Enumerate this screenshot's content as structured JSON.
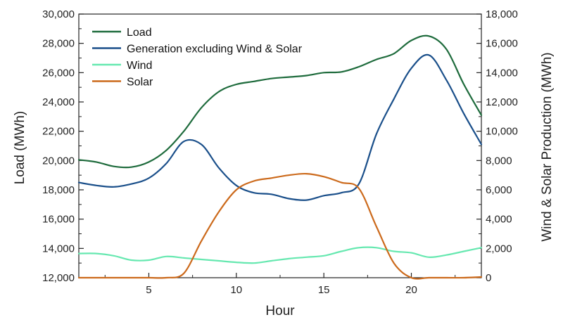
{
  "chart_data": {
    "type": "line",
    "xlabel": "Hour",
    "ylabel_left": "Load (MWh)",
    "ylabel_right": "Wind & Solar Production (MWh)",
    "xlim": [
      1,
      24
    ],
    "ylim_left": [
      12000,
      30000
    ],
    "ylim_right": [
      0,
      18000
    ],
    "x_ticks": [
      5,
      10,
      15,
      20
    ],
    "y_ticks_left": [
      "12,000",
      "14,000",
      "16,000",
      "18,000",
      "20,000",
      "22,000",
      "24,000",
      "26,000",
      "28,000",
      "30,000"
    ],
    "y_ticks_right": [
      "0",
      "2,000",
      "4,000",
      "6,000",
      "8,000",
      "10,000",
      "12,000",
      "14,000",
      "16,000",
      "18,000"
    ],
    "legend_position": "top-left",
    "grid": false,
    "series": [
      {
        "name": "Load",
        "axis": "left",
        "color": "#1e6b3c",
        "x": [
          1,
          2,
          3,
          4,
          5,
          6,
          7,
          8,
          9,
          10,
          11,
          12,
          13,
          14,
          15,
          16,
          17,
          18,
          19,
          20,
          21,
          22,
          23,
          24
        ],
        "values": [
          20050,
          19900,
          19600,
          19550,
          19900,
          20700,
          22000,
          23600,
          24700,
          25200,
          25400,
          25600,
          25700,
          25800,
          26000,
          26050,
          26400,
          26900,
          27300,
          28200,
          28500,
          27600,
          25200,
          23100
        ]
      },
      {
        "name": "Generation excluding Wind & Solar",
        "axis": "left",
        "color": "#1a4f8a",
        "x": [
          1,
          2,
          3,
          4,
          5,
          6,
          7,
          8,
          9,
          10,
          11,
          12,
          13,
          14,
          15,
          16,
          17,
          18,
          19,
          20,
          21,
          22,
          23,
          24
        ],
        "values": [
          18500,
          18300,
          18200,
          18400,
          18800,
          19800,
          21300,
          21100,
          19500,
          18300,
          17800,
          17700,
          17400,
          17300,
          17600,
          17800,
          18400,
          21800,
          24200,
          26300,
          27200,
          25500,
          23200,
          21100
        ]
      },
      {
        "name": "Wind",
        "axis": "right",
        "color": "#66e8b0",
        "x": [
          1,
          2,
          3,
          4,
          5,
          6,
          7,
          8,
          9,
          10,
          11,
          12,
          13,
          14,
          15,
          16,
          17,
          18,
          19,
          20,
          21,
          22,
          23,
          24
        ],
        "values": [
          1650,
          1650,
          1500,
          1200,
          1200,
          1450,
          1350,
          1250,
          1150,
          1050,
          1000,
          1150,
          1300,
          1400,
          1500,
          1800,
          2050,
          2050,
          1800,
          1700,
          1400,
          1550,
          1800,
          2050
        ]
      },
      {
        "name": "Solar",
        "axis": "right",
        "color": "#cc6a1c",
        "x": [
          1,
          2,
          3,
          4,
          5,
          6,
          7,
          8,
          9,
          10,
          11,
          12,
          13,
          14,
          15,
          16,
          17,
          18,
          19,
          20,
          21,
          22,
          23,
          24
        ],
        "values": [
          0,
          0,
          0,
          0,
          0,
          0,
          300,
          2500,
          4500,
          6000,
          6600,
          6800,
          7000,
          7100,
          6900,
          6500,
          6100,
          3500,
          1000,
          0,
          0,
          0,
          0,
          50
        ]
      }
    ]
  }
}
